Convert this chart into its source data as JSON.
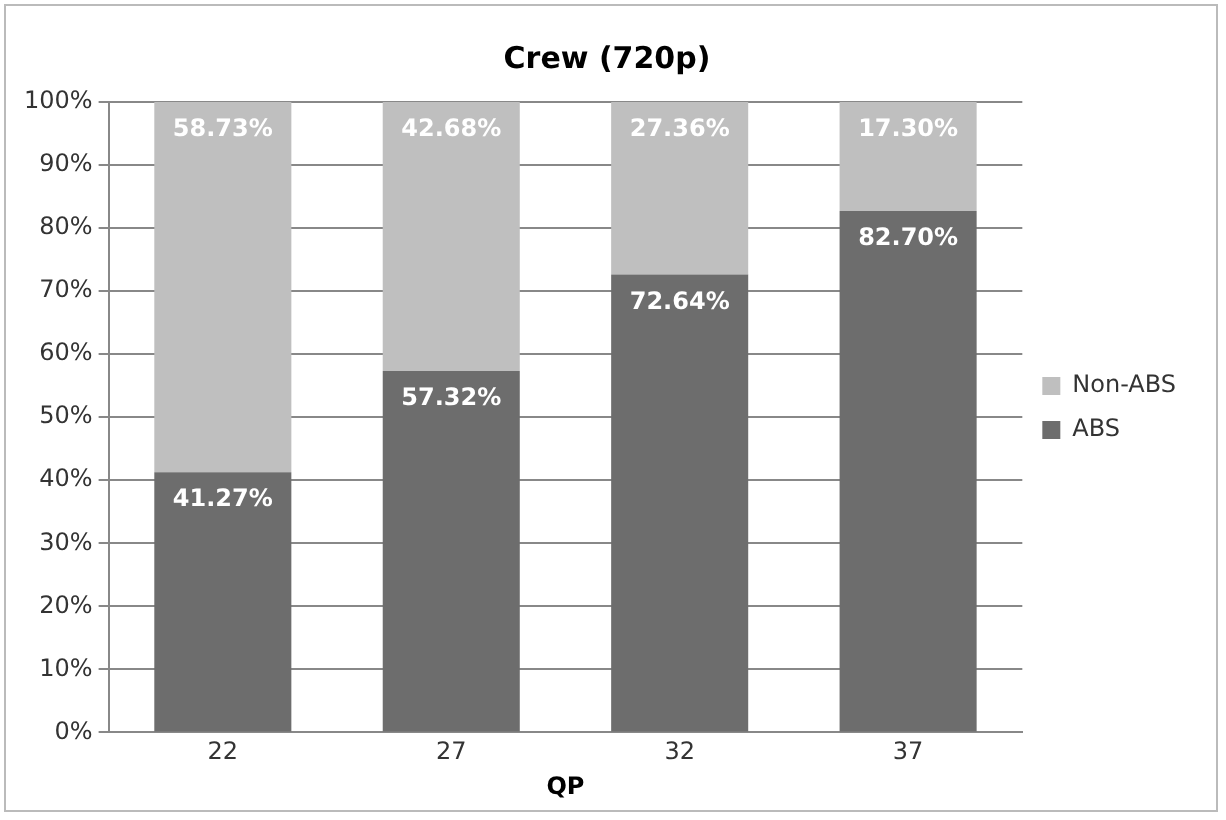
{
  "chart_data": {
    "type": "bar",
    "title": "Crew (720p)",
    "xlabel": "QP",
    "categories": [
      "22",
      "27",
      "32",
      "37"
    ],
    "stacked": true,
    "series": [
      {
        "name": "ABS",
        "color": "#6d6d6d",
        "values": [
          41.27,
          57.32,
          72.64,
          82.7
        ],
        "value_labels": [
          "41.27%",
          "57.32%",
          "72.64%",
          "82.70%"
        ]
      },
      {
        "name": "Non-ABS",
        "color": "#bfbfbf",
        "values": [
          58.73,
          42.68,
          27.36,
          17.3
        ],
        "value_labels": [
          "58.73%",
          "42.68%",
          "27.36%",
          "17.30%"
        ]
      }
    ],
    "ylim": [
      0,
      100
    ],
    "yticks": [
      {
        "value": 0,
        "label": "0%"
      },
      {
        "value": 10,
        "label": "10%"
      },
      {
        "value": 20,
        "label": "20%"
      },
      {
        "value": 30,
        "label": "30%"
      },
      {
        "value": 40,
        "label": "40%"
      },
      {
        "value": 50,
        "label": "50%"
      },
      {
        "value": 60,
        "label": "60%"
      },
      {
        "value": 70,
        "label": "70%"
      },
      {
        "value": 80,
        "label": "80%"
      },
      {
        "value": 90,
        "label": "90%"
      },
      {
        "value": 100,
        "label": "100%"
      }
    ],
    "grid": "y",
    "legend": "right"
  }
}
